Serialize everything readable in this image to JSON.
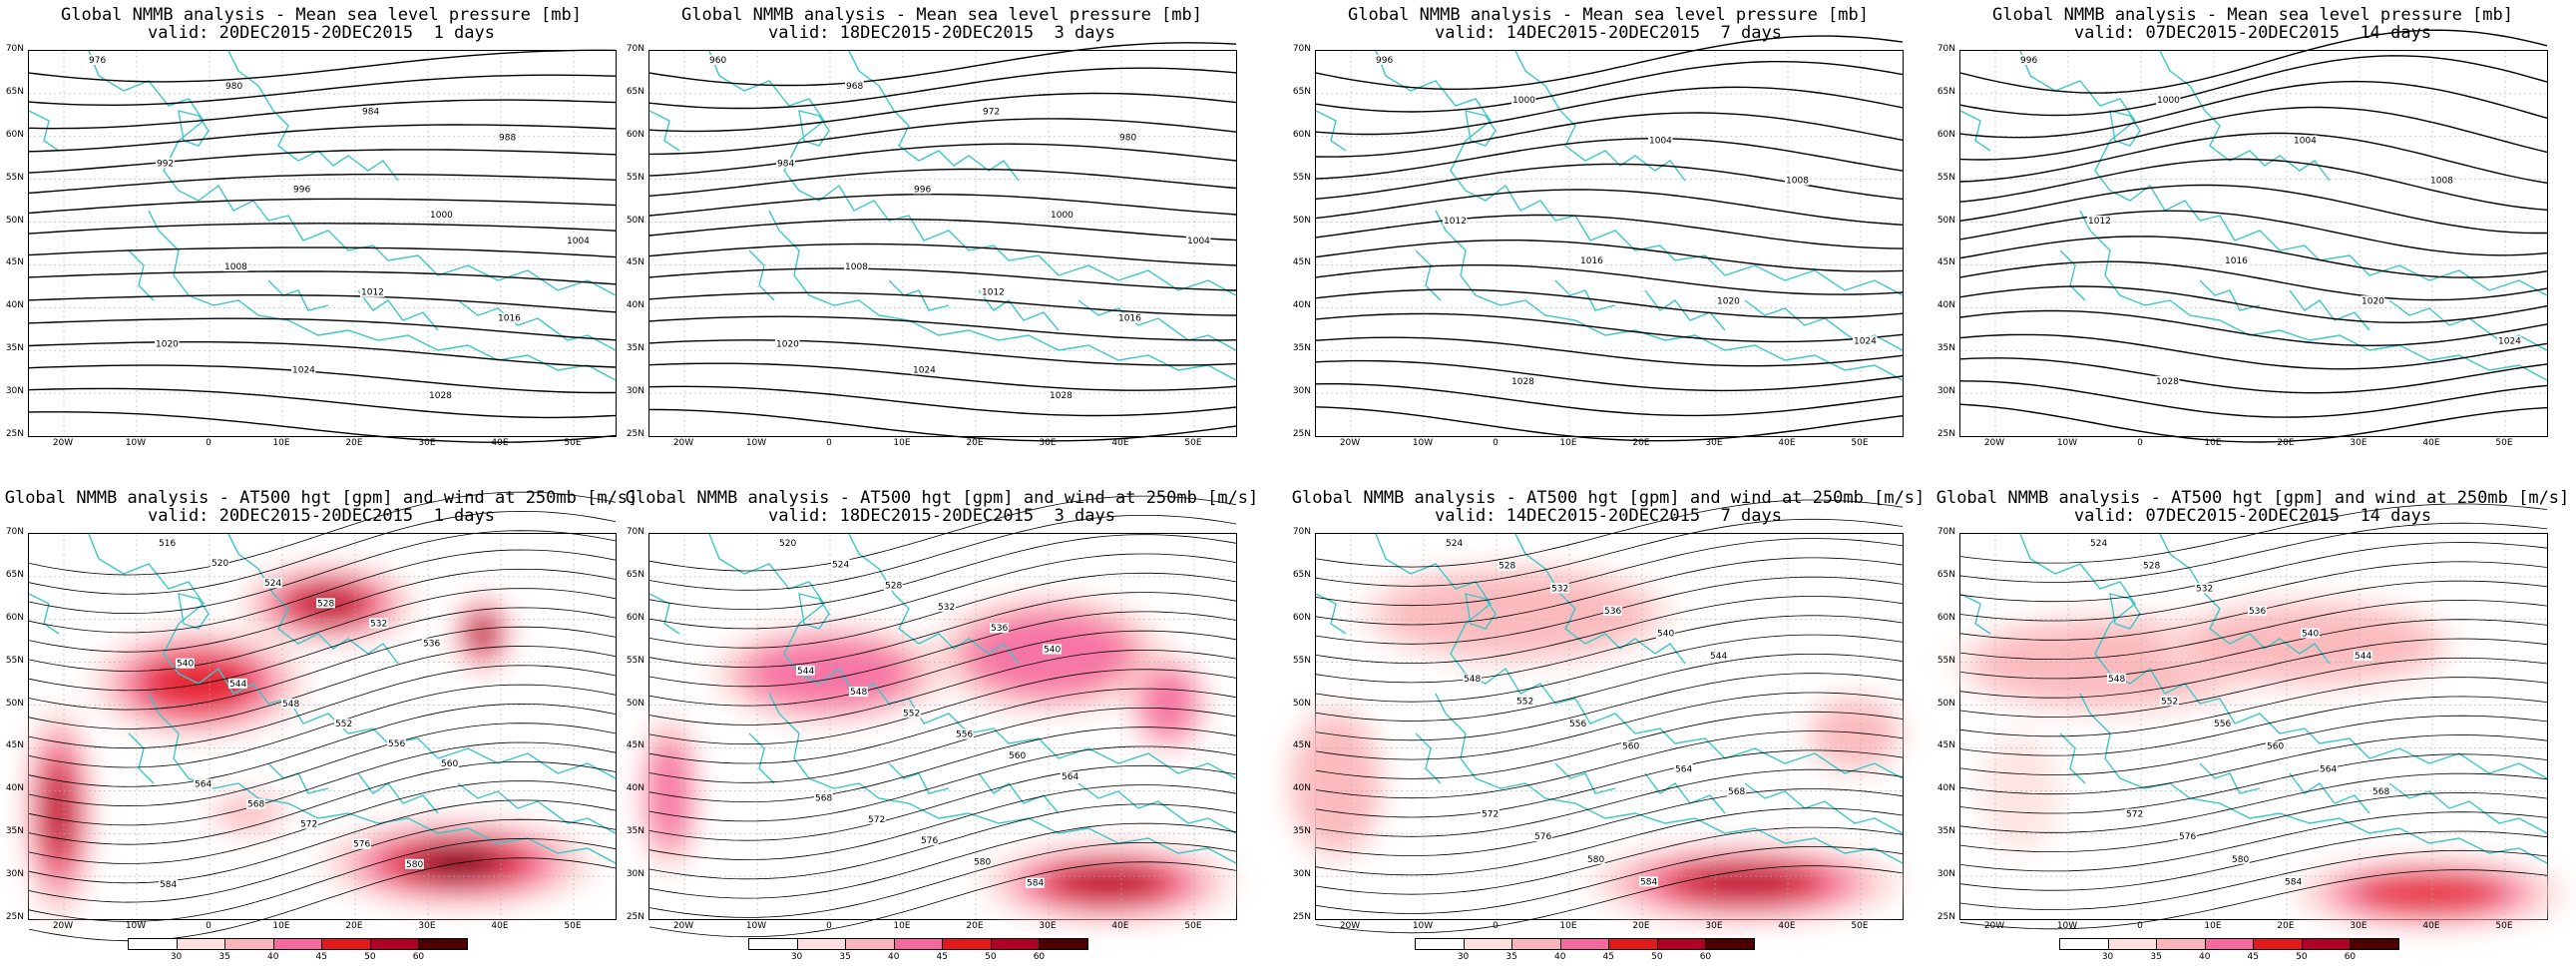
{
  "top_titles": [
    {
      "line1": "Global NMMB analysis - Mean sea level pressure [mb]",
      "line2": "valid: 20DEC2015-20DEC2015  1 days"
    },
    {
      "line1": "Global NMMB analysis - Mean sea level pressure [mb]",
      "line2": "valid: 18DEC2015-20DEC2015  3 days"
    },
    {
      "line1": "Global NMMB analysis - Mean sea level pressure [mb]",
      "line2": "valid: 14DEC2015-20DEC2015  7 days"
    },
    {
      "line1": "Global NMMB analysis - Mean sea level pressure [mb]",
      "line2": "valid: 07DEC2015-20DEC2015  14 days"
    }
  ],
  "bottom_titles": [
    {
      "line1": "Global NMMB analysis - AT500 hgt [gpm] and wind at 250mb [m/s]",
      "line2": "valid: 20DEC2015-20DEC2015  1 days"
    },
    {
      "line1": "Global NMMB analysis - AT500 hgt [gpm] and wind at 250mb [m/s]",
      "line2": "valid: 18DEC2015-20DEC2015  3 days"
    },
    {
      "line1": "Global NMMB analysis - AT500 hgt [gpm] and wind at 250mb [m/s]",
      "line2": "valid: 14DEC2015-20DEC2015  7 days"
    },
    {
      "line1": "Global NMMB analysis - AT500 hgt [gpm] and wind at 250mb [m/s]",
      "line2": "valid: 07DEC2015-20DEC2015  14 days"
    }
  ],
  "lat_labels": [
    "70N",
    "65N",
    "60N",
    "55N",
    "50N",
    "45N",
    "40N",
    "35N",
    "30N",
    "25N"
  ],
  "lon_labels": [
    "20W",
    "10W",
    "0",
    "10E",
    "20E",
    "30E",
    "40E",
    "50E"
  ],
  "colorbar_ticks": [
    "30",
    "35",
    "40",
    "45",
    "50",
    "60"
  ],
  "colorbar_colors": [
    "#ffffff",
    "#fde0dd",
    "#fbb4b9",
    "#f768a1",
    "#e31a1c",
    "#b10026",
    "#4d0000"
  ],
  "colors": {
    "coast": "#3cc8c8",
    "contour": "#000000",
    "grid": "#b0b0b0"
  },
  "slp_labels": [
    [
      "976",
      "980",
      "984",
      "988",
      "992",
      "996",
      "1000",
      "1004",
      "1008",
      "1012",
      "1016",
      "1020",
      "1024",
      "1028"
    ],
    [
      "960",
      "968",
      "972",
      "980",
      "984",
      "996",
      "1000",
      "1004",
      "1008",
      "1012",
      "1016",
      "1020",
      "1024",
      "1028"
    ],
    [
      "996",
      "1000",
      "1004",
      "1008",
      "1012",
      "1016",
      "1020",
      "1024",
      "1028"
    ],
    [
      "996",
      "1000",
      "1004",
      "1008",
      "1012",
      "1016",
      "1020",
      "1024",
      "1028"
    ]
  ],
  "hgt_labels": [
    [
      "516",
      "520",
      "524",
      "528",
      "532",
      "536",
      "540",
      "544",
      "548",
      "552",
      "556",
      "560",
      "564",
      "568",
      "572",
      "576",
      "580",
      "584"
    ],
    [
      "520",
      "524",
      "528",
      "532",
      "536",
      "540",
      "544",
      "548",
      "552",
      "556",
      "560",
      "564",
      "568",
      "572",
      "576",
      "580",
      "584"
    ],
    [
      "524",
      "528",
      "532",
      "536",
      "540",
      "544",
      "548",
      "552",
      "556",
      "560",
      "564",
      "568",
      "572",
      "576",
      "580",
      "584"
    ],
    [
      "524",
      "528",
      "532",
      "536",
      "540",
      "544",
      "548",
      "552",
      "556",
      "560",
      "564",
      "568",
      "572",
      "576",
      "580",
      "584"
    ]
  ]
}
